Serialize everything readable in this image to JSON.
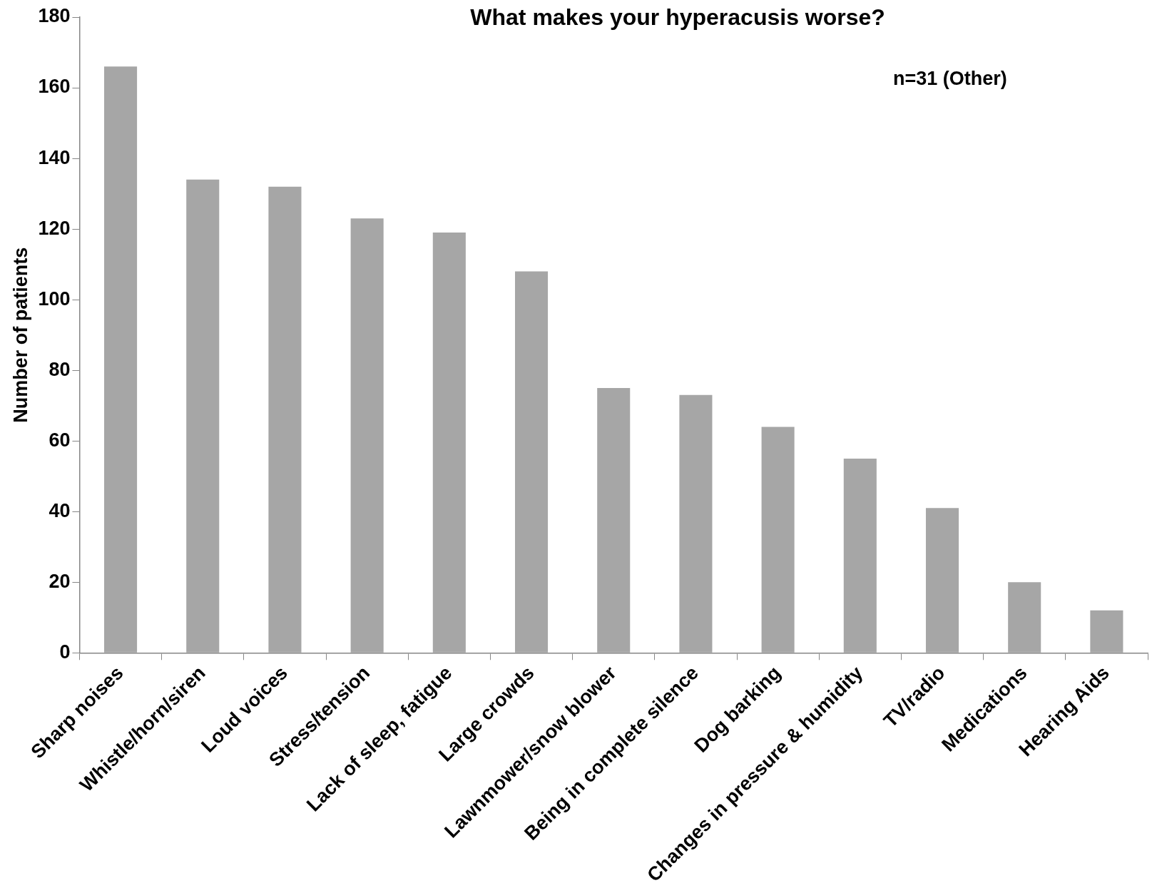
{
  "chart_data": {
    "type": "bar",
    "title": "What makes your hyperacusis worse?",
    "ylabel": "Number of patients",
    "categories": [
      "Sharp noises",
      "Whistle/horn/siren",
      "Loud voices",
      "Stress/tension",
      "Lack of sleep, fatigue",
      "Large crowds",
      "Lawnmower/snow blower",
      "Being in complete silence",
      "Dog barking",
      "Changes in pressure & humidity",
      "TV/radio",
      "Medications",
      "Hearing Aids"
    ],
    "values": [
      166,
      134,
      132,
      123,
      119,
      108,
      75,
      73,
      64,
      55,
      41,
      20,
      12
    ],
    "color": "#a6a6a6",
    "ylim": [
      0,
      180
    ],
    "yticks": [
      0,
      20,
      40,
      60,
      80,
      100,
      120,
      140,
      160,
      180
    ],
    "annotations": [
      "n=31 (Other)"
    ],
    "grid": false,
    "legend": false
  }
}
